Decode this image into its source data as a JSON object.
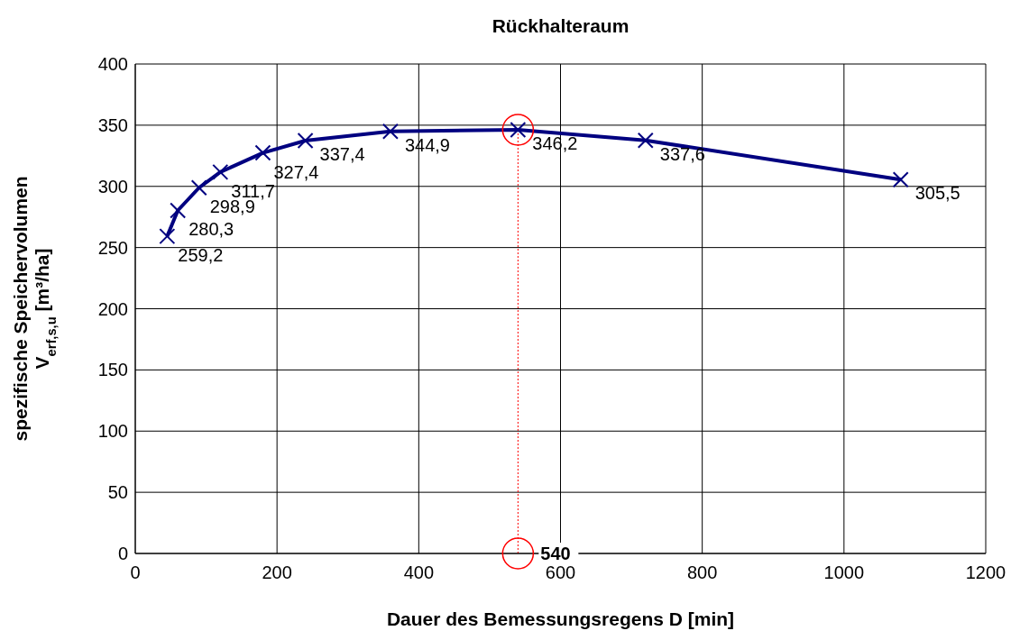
{
  "chart_data": {
    "type": "line",
    "title": "Rückhalteraum",
    "xlabel": "Dauer des Bemessungsregens D [min]",
    "ylabel": "spezifische Speichervolumen\nV$_{erf,s,u}$ [m³/ha]",
    "x": [
      45,
      60,
      90,
      120,
      180,
      240,
      360,
      540,
      720,
      1080
    ],
    "series": [
      {
        "color": "#000080",
        "values": [
          259.2,
          280.3,
          298.9,
          311.7,
          327.4,
          337.4,
          344.9,
          346.2,
          337.6,
          305.5
        ],
        "value_labels": [
          "259,2",
          "280,3",
          "298,9",
          "311,7",
          "327,4",
          "337,4",
          "344,9",
          "346,2",
          "337,6",
          "305,5"
        ]
      }
    ],
    "marker": "cross",
    "grid": true,
    "line_style": "solid",
    "xlim": [
      0,
      1200
    ],
    "xticks": [
      0,
      200,
      400,
      600,
      800,
      1000,
      1200
    ],
    "ylim": [
      0,
      400
    ],
    "yticks": [
      0,
      50,
      100,
      150,
      200,
      250,
      300,
      350,
      400
    ],
    "ref_lines": [
      {
        "axis": "x",
        "value": 540,
        "label": "540",
        "color": "#ff0000",
        "line_style": "dotted"
      }
    ]
  }
}
